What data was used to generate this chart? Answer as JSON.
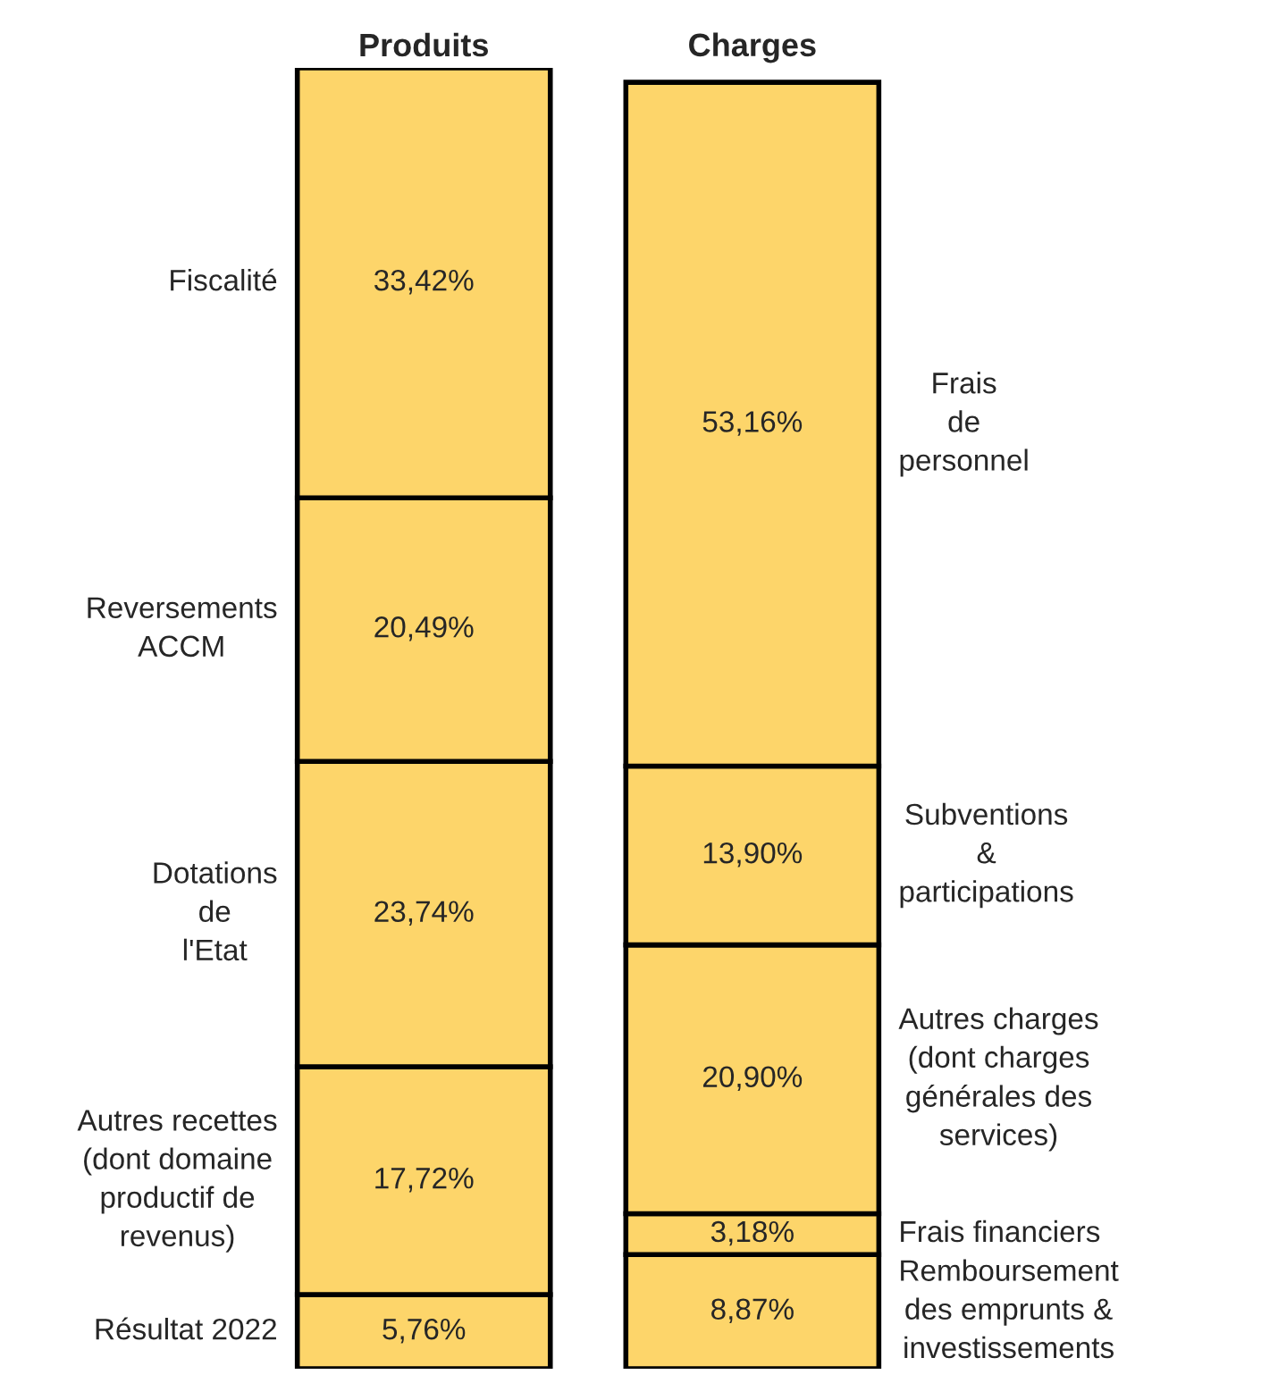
{
  "chart_data": {
    "type": "bar",
    "stacked": true,
    "categories": [
      "Produits",
      "Charges"
    ],
    "ylim": [
      0,
      101.13
    ],
    "tick_labels": "x",
    "legend": false,
    "series": [
      {
        "name": "Résultat 2022",
        "color": "#fdd56a",
        "values": [
          5.76,
          null
        ],
        "value_labels": [
          "5,76%",
          null
        ]
      },
      {
        "name": "Autres recettes\n(dont domaine\nproductif de\nrevenus)",
        "color": "#fdd56a",
        "values": [
          17.72,
          null
        ],
        "value_labels": [
          "17,72%",
          null
        ]
      },
      {
        "name": "Dotations\nde\nl'Etat",
        "color": "#fdd56a",
        "values": [
          23.74,
          null
        ],
        "value_labels": [
          "23,74%",
          null
        ]
      },
      {
        "name": "Reversements\nACCM",
        "color": "#fdd56a",
        "values": [
          20.49,
          null
        ],
        "value_labels": [
          "20,49%",
          null
        ]
      },
      {
        "name": "Fiscalité",
        "color": "#fdd56a",
        "values": [
          33.42,
          null
        ],
        "value_labels": [
          "33,42%",
          null
        ]
      },
      {
        "name": "Remboursement\ndes emprunts &\ninvestissements",
        "color": "#fdd56a",
        "values": [
          null,
          8.87
        ],
        "value_labels": [
          null,
          "8,87%"
        ]
      },
      {
        "name": "Frais financiers",
        "color": "#fdd56a",
        "values": [
          null,
          3.18
        ],
        "value_labels": [
          null,
          "3,18%"
        ]
      },
      {
        "name": "Autres charges\n(dont charges\ngénérales des\nservices)",
        "color": "#fdd56a",
        "values": [
          null,
          20.9
        ],
        "value_labels": [
          null,
          "20,90%"
        ]
      },
      {
        "name": "Subventions\n&\nparticipations",
        "color": "#fdd56a",
        "values": [
          null,
          13.9
        ],
        "value_labels": [
          null,
          "13,90%"
        ]
      },
      {
        "name": "Frais\nde\npersonnel",
        "color": "#fdd56a",
        "values": [
          null,
          53.16
        ],
        "value_labels": [
          null,
          "53,16%"
        ]
      }
    ]
  }
}
